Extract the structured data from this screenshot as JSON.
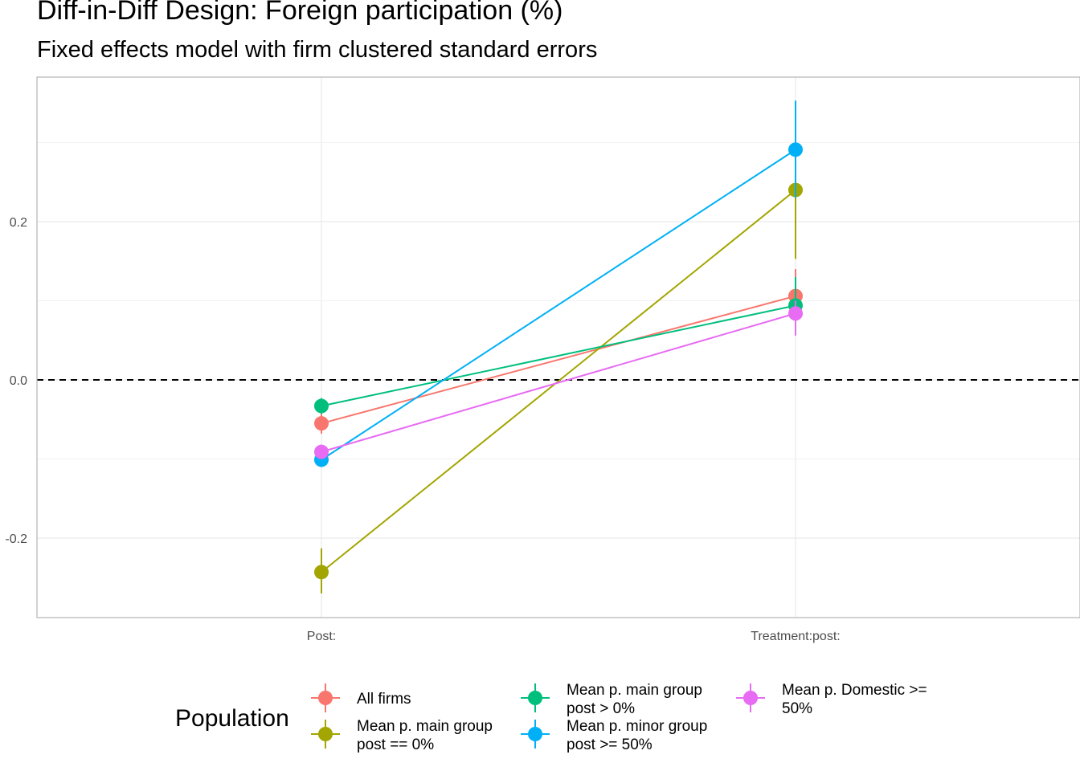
{
  "chart_data": {
    "type": "line",
    "title": "Diff-in-Diff Design: Foreign participation (%)",
    "subtitle": "Fixed effects model with firm clustered standard errors",
    "xlabel": "",
    "ylabel": "",
    "categories": [
      "Post:",
      "Treatment:post:"
    ],
    "ylim": [
      -0.3,
      0.38
    ],
    "y_ticks": [
      -0.2,
      0.0,
      0.2
    ],
    "y_tick_labels": [
      "-0.2",
      "0.0",
      "0.2"
    ],
    "reference_line": {
      "y": 0,
      "style": "dashed"
    },
    "grid": true,
    "legend": {
      "title": "Population",
      "position": "bottom"
    },
    "series": [
      {
        "name": "All firms",
        "color": "#F8766D",
        "values": [
          -0.055,
          0.106
        ],
        "lower": [
          -0.068,
          0.08
        ],
        "upper": [
          -0.042,
          0.14
        ]
      },
      {
        "name": "Mean p. main group post == 0%",
        "color": "#A3A500",
        "values": [
          -0.243,
          0.24
        ],
        "lower": [
          -0.27,
          0.153
        ],
        "upper": [
          -0.213,
          0.248
        ]
      },
      {
        "name": "Mean p. main group post > 0%",
        "color": "#00BF7D",
        "values": [
          -0.033,
          0.094
        ],
        "lower": [
          -0.043,
          0.075
        ],
        "upper": [
          -0.023,
          0.13
        ]
      },
      {
        "name": "Mean p. minor group post >= 50%",
        "color": "#00B0F6",
        "values": [
          -0.101,
          0.291
        ],
        "lower": [
          -0.11,
          0.23
        ],
        "upper": [
          -0.092,
          0.353
        ]
      },
      {
        "name": "Mean p. Domestic >= 50%",
        "color": "#E76BF3",
        "values": [
          -0.091,
          0.084
        ],
        "lower": [
          -0.1,
          0.056
        ],
        "upper": [
          -0.082,
          0.1
        ]
      }
    ],
    "legend_lines": [
      [
        "All firms"
      ],
      [
        "Mean p. main group",
        "post == 0%"
      ],
      [
        "Mean p. main group",
        "post > 0%"
      ],
      [
        "Mean p. minor group",
        "post >= 50%"
      ],
      [
        "Mean p. Domestic >=",
        "50%"
      ]
    ]
  }
}
